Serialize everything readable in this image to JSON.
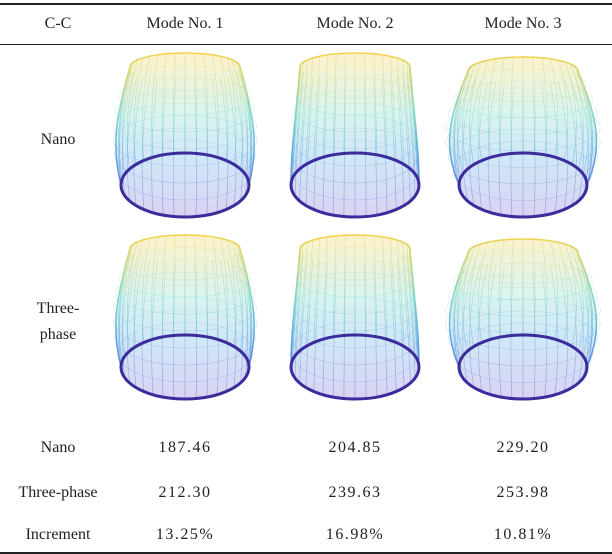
{
  "table": {
    "header": [
      "C-C",
      "Mode No. 1",
      "Mode No. 2",
      "Mode No. 3"
    ],
    "shape_rows": [
      "Nano",
      "Three-phase"
    ],
    "rows": [
      [
        "Nano",
        "187.46",
        "204.85",
        "229.20"
      ],
      [
        "Three-phase",
        "212.30",
        "239.63",
        "253.98"
      ],
      [
        "Increment",
        "13.25%",
        "16.98%",
        "10.81%"
      ]
    ]
  }
}
